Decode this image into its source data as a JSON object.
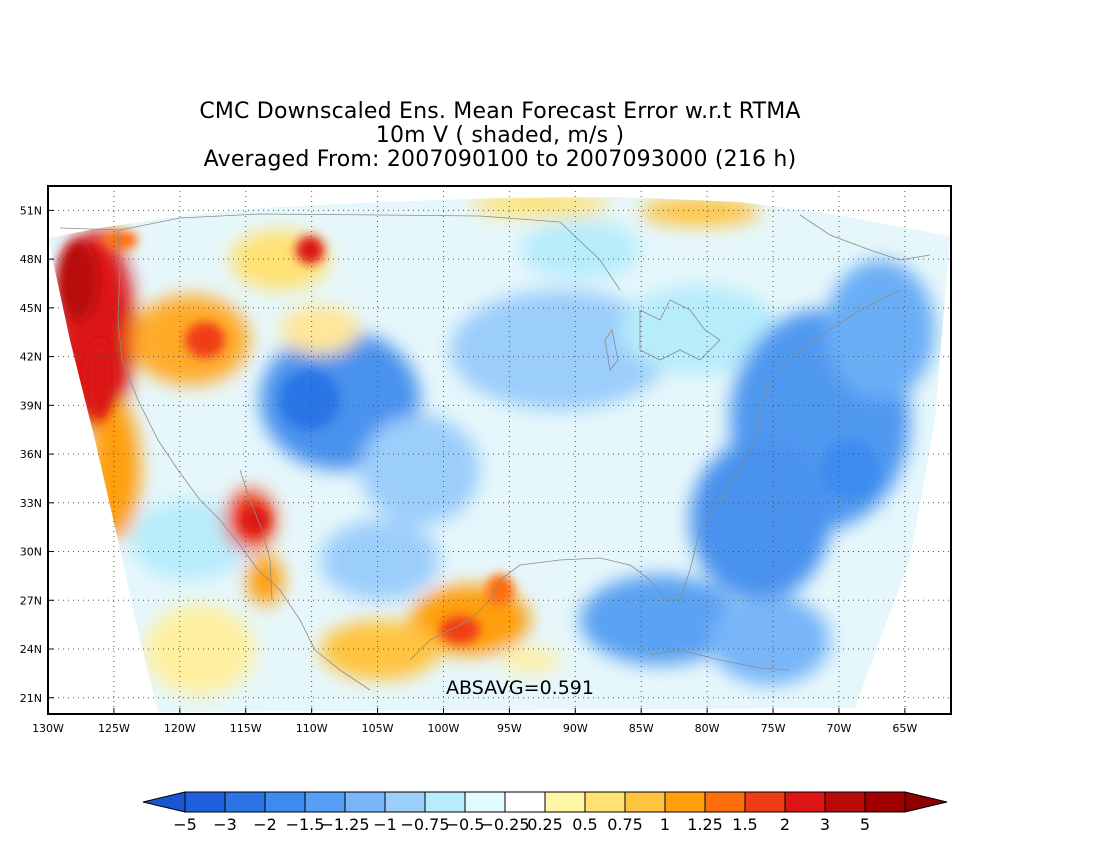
{
  "title": {
    "line1": "CMC Downscaled Ens. Mean Forecast Error w.r.t RTMA",
    "line2": "10m V ( shaded, m/s )",
    "line3": "Averaged From: 2007090100 to 2007093000 (216 h)"
  },
  "annotation": "ABSAVG=0.591",
  "lat_labels": [
    "51N",
    "48N",
    "45N",
    "42N",
    "39N",
    "36N",
    "33N",
    "30N",
    "27N",
    "24N",
    "21N"
  ],
  "lat_values": [
    51,
    48,
    45,
    42,
    39,
    36,
    33,
    30,
    27,
    24,
    21
  ],
  "lon_labels": [
    "130W",
    "125W",
    "120W",
    "115W",
    "110W",
    "105W",
    "100W",
    "95W",
    "90W",
    "85W",
    "80W",
    "75W",
    "70W",
    "65W"
  ],
  "lon_values": [
    -130,
    -125,
    -120,
    -115,
    -110,
    -105,
    -100,
    -95,
    -90,
    -85,
    -80,
    -75,
    -70,
    -65
  ],
  "colorbar": {
    "labels": [
      "−5",
      "−3",
      "−2",
      "−1.5",
      "−1.25",
      "−1",
      "−0.75",
      "−0.5",
      "−0.25",
      "0.25",
      "0.5",
      "0.75",
      "1",
      "1.25",
      "1.5",
      "2",
      "3",
      "5"
    ],
    "colors": [
      "#1f5fdc",
      "#2c74e6",
      "#3c8cf0",
      "#559ff4",
      "#78b6f8",
      "#9ccefb",
      "#b7ecfb",
      "#e0fcff",
      "#ffffff",
      "#fff6a6",
      "#ffe273",
      "#ffc43f",
      "#ff9f0d",
      "#ff6d0d",
      "#f03c14",
      "#dc1414",
      "#b90a0a",
      "#a00000"
    ],
    "under_color": "#1a55d2",
    "over_color": "#8c0000"
  },
  "map_extent": {
    "lon_min": -130,
    "lon_max": -61.5,
    "lat_min": 20,
    "lat_max": 52.5
  },
  "grid": "dotted"
}
